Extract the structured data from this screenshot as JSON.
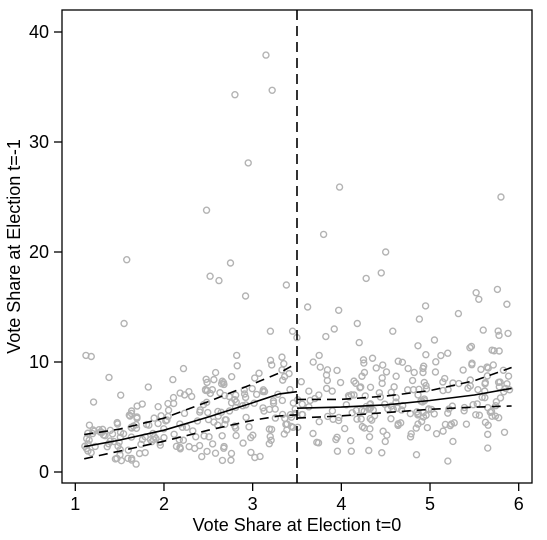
{
  "chart_data": {
    "type": "scatter",
    "xlabel": "Vote Share at Election t=0",
    "ylabel": "Vote Share at Election t=-1",
    "xlim": [
      0.85,
      6.15
    ],
    "ylim": [
      -1,
      42
    ],
    "x_ticks": [
      1,
      2,
      3,
      4,
      5,
      6
    ],
    "y_ticks": [
      0,
      10,
      20,
      30,
      40
    ],
    "grid": false,
    "legend": "none",
    "cutoff_x": 3.5,
    "colors": {
      "points": "#b3b3b3",
      "lines": "#000000"
    },
    "outliers": [
      {
        "x": 1.12,
        "y": 10.6
      },
      {
        "x": 1.18,
        "y": 10.5
      },
      {
        "x": 1.55,
        "y": 13.5
      },
      {
        "x": 1.58,
        "y": 19.3
      },
      {
        "x": 1.38,
        "y": 8.6
      },
      {
        "x": 2.1,
        "y": 8.4
      },
      {
        "x": 2.22,
        "y": 9.4
      },
      {
        "x": 2.48,
        "y": 23.8
      },
      {
        "x": 2.52,
        "y": 17.8
      },
      {
        "x": 2.62,
        "y": 17.4
      },
      {
        "x": 2.75,
        "y": 19.0
      },
      {
        "x": 2.8,
        "y": 34.3
      },
      {
        "x": 2.92,
        "y": 16.0
      },
      {
        "x": 2.95,
        "y": 28.1
      },
      {
        "x": 3.15,
        "y": 37.9
      },
      {
        "x": 3.22,
        "y": 34.7
      },
      {
        "x": 3.38,
        "y": 17.0
      },
      {
        "x": 3.2,
        "y": 12.8
      },
      {
        "x": 3.45,
        "y": 12.8
      },
      {
        "x": 3.62,
        "y": 15.0
      },
      {
        "x": 3.8,
        "y": 21.6
      },
      {
        "x": 3.98,
        "y": 25.9
      },
      {
        "x": 3.92,
        "y": 13.0
      },
      {
        "x": 3.97,
        "y": 14.7
      },
      {
        "x": 4.18,
        "y": 13.5
      },
      {
        "x": 4.28,
        "y": 17.6
      },
      {
        "x": 4.45,
        "y": 18.1
      },
      {
        "x": 4.5,
        "y": 20.0
      },
      {
        "x": 4.58,
        "y": 12.8
      },
      {
        "x": 4.95,
        "y": 15.1
      },
      {
        "x": 4.88,
        "y": 13.9
      },
      {
        "x": 5.05,
        "y": 12.0
      },
      {
        "x": 5.32,
        "y": 14.4
      },
      {
        "x": 5.52,
        "y": 16.3
      },
      {
        "x": 5.55,
        "y": 15.7
      },
      {
        "x": 5.6,
        "y": 12.9
      },
      {
        "x": 5.76,
        "y": 16.6
      },
      {
        "x": 5.8,
        "y": 25.0
      },
      {
        "x": 5.88,
        "y": 12.6
      },
      {
        "x": 5.78,
        "y": 11.0
      },
      {
        "x": 4.25,
        "y": 10.2
      },
      {
        "x": 3.75,
        "y": 10.6
      },
      {
        "x": 2.82,
        "y": 10.6
      },
      {
        "x": 5.2,
        "y": 10.8
      },
      {
        "x": 5.45,
        "y": 11.3
      }
    ],
    "cluster": {
      "count": 430,
      "x_range": [
        1.1,
        5.92
      ],
      "baseline_left": [
        [
          1.1,
          2.4
        ],
        [
          3.5,
          6.8
        ]
      ],
      "baseline_right": [
        [
          3.5,
          5.4
        ],
        [
          5.92,
          6.9
        ]
      ]
    },
    "fit": {
      "left": [
        {
          "x": 1.1,
          "y": 2.3
        },
        {
          "x": 1.5,
          "y": 2.9
        },
        {
          "x": 2.0,
          "y": 3.8
        },
        {
          "x": 2.5,
          "y": 5.0
        },
        {
          "x": 3.0,
          "y": 6.3
        },
        {
          "x": 3.3,
          "y": 7.1
        },
        {
          "x": 3.5,
          "y": 7.3
        }
      ],
      "right": [
        {
          "x": 3.5,
          "y": 5.8
        },
        {
          "x": 4.0,
          "y": 5.9
        },
        {
          "x": 4.5,
          "y": 6.1
        },
        {
          "x": 5.0,
          "y": 6.5
        },
        {
          "x": 5.5,
          "y": 7.0
        },
        {
          "x": 5.92,
          "y": 7.6
        }
      ]
    },
    "ci_upper": {
      "left": [
        {
          "x": 1.1,
          "y": 3.4
        },
        {
          "x": 1.5,
          "y": 3.9
        },
        {
          "x": 2.0,
          "y": 4.9
        },
        {
          "x": 2.5,
          "y": 6.4
        },
        {
          "x": 3.0,
          "y": 8.0
        },
        {
          "x": 3.3,
          "y": 9.0
        },
        {
          "x": 3.5,
          "y": 9.9
        }
      ],
      "right": [
        {
          "x": 3.5,
          "y": 6.6
        },
        {
          "x": 4.0,
          "y": 6.6
        },
        {
          "x": 4.5,
          "y": 6.9
        },
        {
          "x": 5.0,
          "y": 7.4
        },
        {
          "x": 5.5,
          "y": 8.3
        },
        {
          "x": 5.92,
          "y": 9.5
        }
      ]
    },
    "ci_lower": {
      "left": [
        {
          "x": 1.1,
          "y": 1.2
        },
        {
          "x": 1.5,
          "y": 1.9
        },
        {
          "x": 2.0,
          "y": 2.8
        },
        {
          "x": 2.5,
          "y": 3.8
        },
        {
          "x": 3.0,
          "y": 4.7
        },
        {
          "x": 3.3,
          "y": 5.1
        },
        {
          "x": 3.5,
          "y": 5.2
        }
      ],
      "right": [
        {
          "x": 3.5,
          "y": 4.9
        },
        {
          "x": 4.0,
          "y": 5.1
        },
        {
          "x": 4.5,
          "y": 5.4
        },
        {
          "x": 5.0,
          "y": 5.7
        },
        {
          "x": 5.5,
          "y": 5.9
        },
        {
          "x": 5.92,
          "y": 6.0
        }
      ]
    }
  }
}
